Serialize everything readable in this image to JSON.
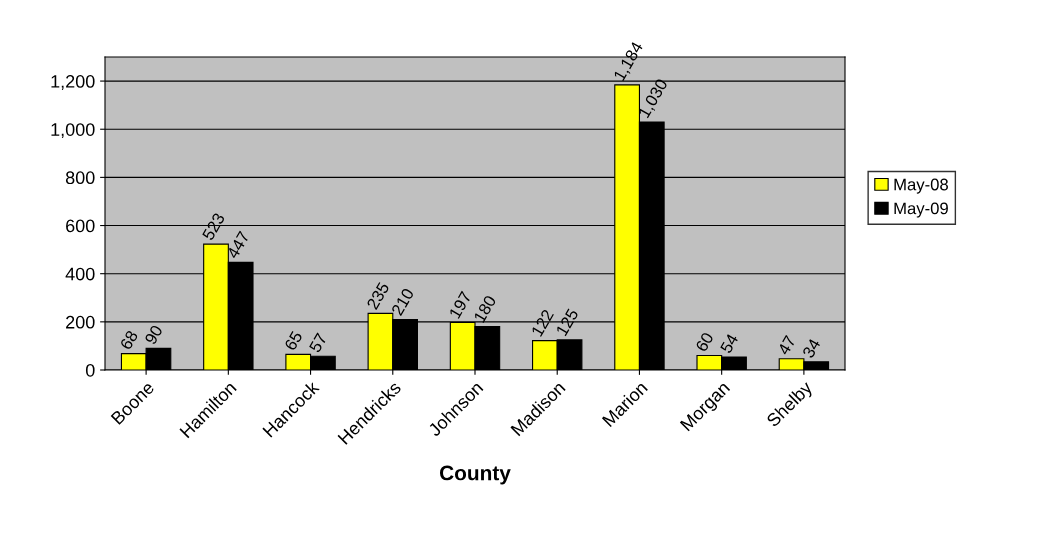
{
  "chart_data": {
    "type": "bar",
    "xlabel": "County",
    "categories": [
      "Boone",
      "Hamilton",
      "Hancock",
      "Hendricks",
      "Johnson",
      "Madison",
      "Marion",
      "Morgan",
      "Shelby"
    ],
    "series": [
      {
        "name": "May-08",
        "color": "#ffff00",
        "values": [
          68,
          523,
          65,
          235,
          197,
          122,
          1184,
          60,
          47
        ],
        "value_labels": [
          "68",
          "523",
          "65",
          "235",
          "197",
          "122",
          "1,184",
          "60",
          "47"
        ]
      },
      {
        "name": "May-09",
        "color": "#000000",
        "values": [
          90,
          447,
          57,
          210,
          180,
          125,
          1030,
          54,
          34
        ],
        "value_labels": [
          "90",
          "447",
          "57",
          "210",
          "180",
          "125",
          "1,030",
          "54",
          "34"
        ]
      }
    ],
    "ylim": [
      0,
      1300
    ],
    "yticks": [
      0,
      200,
      400,
      600,
      800,
      {
        "value": 1000,
        "label": "1,000"
      },
      {
        "value": 1200,
        "label": "1,200"
      }
    ],
    "grid": "y",
    "legend": "right"
  }
}
